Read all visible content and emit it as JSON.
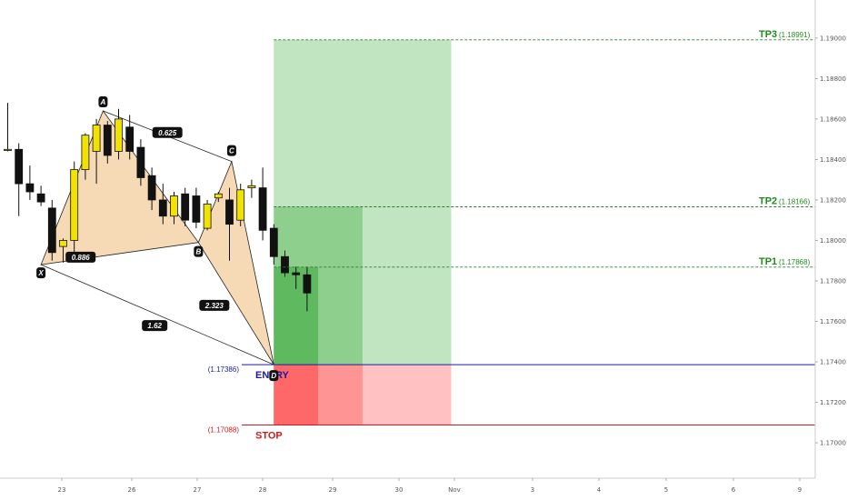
{
  "chart_data": {
    "type": "candlestick",
    "instrument_decimals": 5,
    "ylim": [
      1.16825,
      1.19188
    ],
    "y_ticks": [
      "1.19000",
      "1.18800",
      "1.18600",
      "1.18400",
      "1.18200",
      "1.18000",
      "1.17800",
      "1.17600",
      "1.17400",
      "1.17200",
      "1.17000"
    ],
    "x_ticks": [
      "23",
      "26",
      "27",
      "28",
      "29",
      "30",
      "Nov",
      "3",
      "4",
      "5",
      "6",
      "9"
    ],
    "candles": [
      {
        "o": 1.1845,
        "h": 1.1868,
        "l": 1.1844,
        "c": 1.1845
      },
      {
        "o": 1.1845,
        "h": 1.1848,
        "l": 1.1812,
        "c": 1.1828
      },
      {
        "o": 1.1828,
        "h": 1.1837,
        "l": 1.182,
        "c": 1.1824
      },
      {
        "o": 1.1823,
        "h": 1.1827,
        "l": 1.1817,
        "c": 1.1819
      },
      {
        "o": 1.1816,
        "h": 1.182,
        "l": 1.179,
        "c": 1.1794
      },
      {
        "o": 1.1797,
        "h": 1.1801,
        "l": 1.1789,
        "c": 1.18
      },
      {
        "o": 1.18,
        "h": 1.1839,
        "l": 1.1793,
        "c": 1.1835
      },
      {
        "o": 1.1835,
        "h": 1.1853,
        "l": 1.183,
        "c": 1.1852
      },
      {
        "o": 1.1844,
        "h": 1.186,
        "l": 1.1828,
        "c": 1.1857
      },
      {
        "o": 1.1857,
        "h": 1.1859,
        "l": 1.1838,
        "c": 1.1842
      },
      {
        "o": 1.1844,
        "h": 1.1865,
        "l": 1.184,
        "c": 1.186
      },
      {
        "o": 1.1856,
        "h": 1.1862,
        "l": 1.184,
        "c": 1.1844
      },
      {
        "o": 1.1846,
        "h": 1.185,
        "l": 1.1827,
        "c": 1.1831
      },
      {
        "o": 1.1832,
        "h": 1.1836,
        "l": 1.1815,
        "c": 1.182
      },
      {
        "o": 1.182,
        "h": 1.1828,
        "l": 1.1808,
        "c": 1.1812
      },
      {
        "o": 1.1812,
        "h": 1.1824,
        "l": 1.1808,
        "c": 1.1822
      },
      {
        "o": 1.1823,
        "h": 1.1826,
        "l": 1.1807,
        "c": 1.181
      },
      {
        "o": 1.1822,
        "h": 1.1826,
        "l": 1.1806,
        "c": 1.1809
      },
      {
        "o": 1.1806,
        "h": 1.182,
        "l": 1.1805,
        "c": 1.1818
      },
      {
        "o": 1.1821,
        "h": 1.1824,
        "l": 1.1819,
        "c": 1.1823
      },
      {
        "o": 1.182,
        "h": 1.1826,
        "l": 1.179,
        "c": 1.1808
      },
      {
        "o": 1.181,
        "h": 1.1828,
        "l": 1.1807,
        "c": 1.1825
      },
      {
        "o": 1.1826,
        "h": 1.183,
        "l": 1.1821,
        "c": 1.1827
      },
      {
        "o": 1.1826,
        "h": 1.1836,
        "l": 1.18,
        "c": 1.1805
      },
      {
        "o": 1.1806,
        "h": 1.1808,
        "l": 1.1788,
        "c": 1.1792
      },
      {
        "o": 1.1792,
        "h": 1.1795,
        "l": 1.1782,
        "c": 1.1784
      },
      {
        "o": 1.1784,
        "h": 1.1787,
        "l": 1.1776,
        "c": 1.1783
      },
      {
        "o": 1.1783,
        "h": 1.1787,
        "l": 1.1765,
        "c": 1.1774
      }
    ],
    "harmonic_points": [
      {
        "label": "X",
        "x_index": 3.0,
        "price": 1.1788
      },
      {
        "label": "A",
        "x_index": 8.6,
        "price": 1.1864
      },
      {
        "label": "B",
        "x_index": 17.2,
        "price": 1.1799
      },
      {
        "label": "C",
        "x_index": 20.2,
        "price": 1.1839
      },
      {
        "label": "D",
        "x_index": 24.0,
        "price": 1.17386
      }
    ],
    "ratios": [
      {
        "value": "0.625",
        "between": [
          "A",
          "C"
        ]
      },
      {
        "value": "0.886",
        "between": [
          "X",
          "B"
        ]
      },
      {
        "value": "1.62",
        "between": [
          "X",
          "D"
        ]
      },
      {
        "value": "2.323",
        "between": [
          "B",
          "D"
        ]
      }
    ],
    "levels": {
      "entry": {
        "name": "ENTRY",
        "price": 1.17386,
        "price_text": "(1.17386)",
        "color": "#1a1aa8"
      },
      "stop": {
        "name": "STOP",
        "price": 1.17088,
        "price_text": "(1.17088)",
        "color": "#d11c1c"
      },
      "targets": [
        {
          "name": "TP1",
          "price": 1.17868,
          "price_text": "(1.17868)"
        },
        {
          "name": "TP2",
          "price": 1.18166,
          "price_text": "(1.18166)"
        },
        {
          "name": "TP3",
          "price": 1.18991,
          "price_text": "(1.18991)"
        }
      ]
    },
    "zones": {
      "start_index": 24.0,
      "tp1_end_index": 28.0,
      "tp2_end_index": 32.0,
      "tp3_end_index": 40.0
    },
    "colors": {
      "bull_candle": "#f2e200",
      "bear_candle": "#111111",
      "pattern_fill": "#f5d4a8",
      "profit_dark": "#5fba5f",
      "profit_mid": "#8ecf8e",
      "profit_light": "#c1e5c1",
      "loss_dark": "#ff6868",
      "loss_mid": "#ff9494",
      "loss_light": "#ffc1c1",
      "tp_text": "#1e8a1e"
    }
  }
}
